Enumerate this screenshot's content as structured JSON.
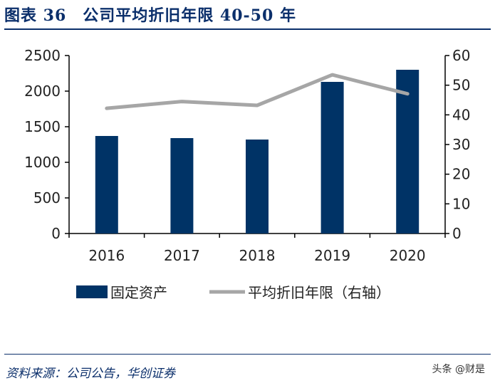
{
  "title": "图表 36　公司平均折旧年限 40-50 年",
  "source": "资料来源：公司公告，华创证券",
  "watermark": "头条 @财是",
  "colors": {
    "bar": "#003366",
    "line": "#a6a6a6",
    "title": "#0b2f6b"
  },
  "chart_data": {
    "type": "bar+line",
    "categories": [
      "2016",
      "2017",
      "2018",
      "2019",
      "2020"
    ],
    "series": [
      {
        "name": "固定资产",
        "type": "bar",
        "axis": "left",
        "values": [
          1370,
          1340,
          1320,
          2130,
          2300
        ]
      },
      {
        "name": "平均折旧年限（右轴）",
        "type": "line",
        "axis": "right",
        "values": [
          42.2,
          44.5,
          43.2,
          53.5,
          47.1
        ]
      }
    ],
    "ylim": [
      0,
      2500
    ],
    "yticks": [
      "0",
      "500",
      "1000",
      "1500",
      "2000",
      "2500"
    ],
    "y2lim": [
      0,
      60
    ],
    "y2ticks": [
      "0",
      "10",
      "20",
      "30",
      "40",
      "50",
      "60"
    ],
    "legend": "bottom",
    "grid": false
  }
}
